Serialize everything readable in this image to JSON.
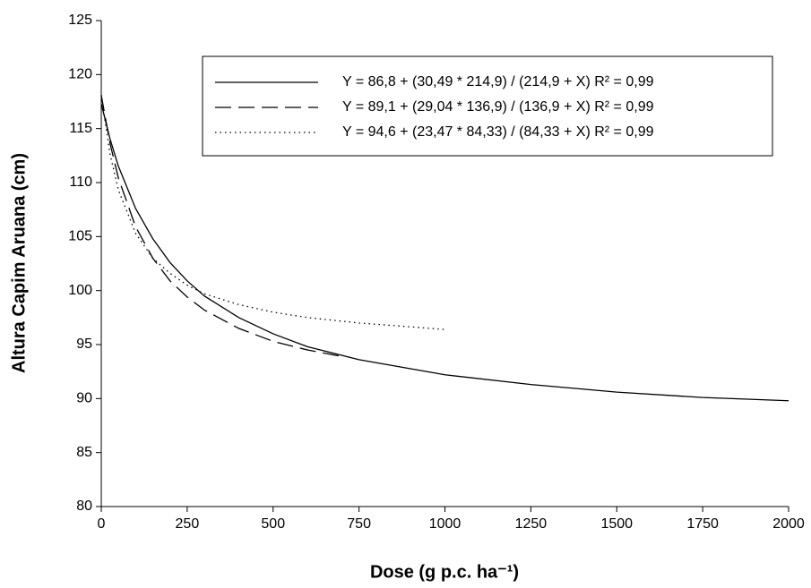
{
  "chart_data": {
    "type": "line",
    "x_label": "Dose (g p.c. ha⁻¹)",
    "y_label": "Altura Capim Aruana (cm)",
    "xlim": [
      0,
      2000
    ],
    "xticks": [
      0,
      250,
      500,
      750,
      1000,
      1250,
      1500,
      1750,
      2000
    ],
    "ylim": [
      80,
      125
    ],
    "yticks": [
      80,
      85,
      90,
      95,
      100,
      105,
      110,
      115,
      120,
      125
    ],
    "series": [
      {
        "name": "Y = 86,8 + (30,49 * 214,9) / (214,9 + X) R² = 0,99",
        "color": "#000000",
        "style": "solid",
        "x": [
          0,
          25,
          50,
          100,
          150,
          200,
          250,
          300,
          400,
          500,
          600,
          750,
          1000,
          1250,
          1500,
          1750,
          2000
        ],
        "values": [
          117.3,
          114.1,
          111.5,
          107.6,
          104.8,
          102.6,
          100.9,
          99.5,
          97.5,
          96.0,
          94.8,
          93.6,
          92.2,
          91.3,
          90.6,
          90.1,
          89.8
        ]
      },
      {
        "name": "Y = 89,1 + (29,04 * 136,9) / (136,9 + X) R² = 0,99",
        "color": "#000000",
        "style": "dashed",
        "x": [
          0,
          25,
          50,
          100,
          150,
          200,
          250,
          300,
          400,
          500,
          600,
          700
        ],
        "values": [
          118.1,
          113.7,
          110.4,
          105.9,
          103.0,
          100.9,
          99.4,
          98.2,
          96.5,
          95.3,
          94.5,
          93.9
        ]
      },
      {
        "name": "Y = 94,6 + (23,47 * 84,33) / (84,33 + X) R² = 0,99",
        "color": "#000000",
        "style": "dotted",
        "x": [
          0,
          25,
          50,
          100,
          150,
          200,
          250,
          300,
          400,
          500,
          600,
          750,
          1000
        ],
        "values": [
          118.1,
          112.7,
          109.3,
          105.3,
          103.0,
          101.6,
          100.5,
          99.7,
          98.7,
          98.0,
          97.5,
          97.0,
          96.4
        ]
      }
    ]
  }
}
